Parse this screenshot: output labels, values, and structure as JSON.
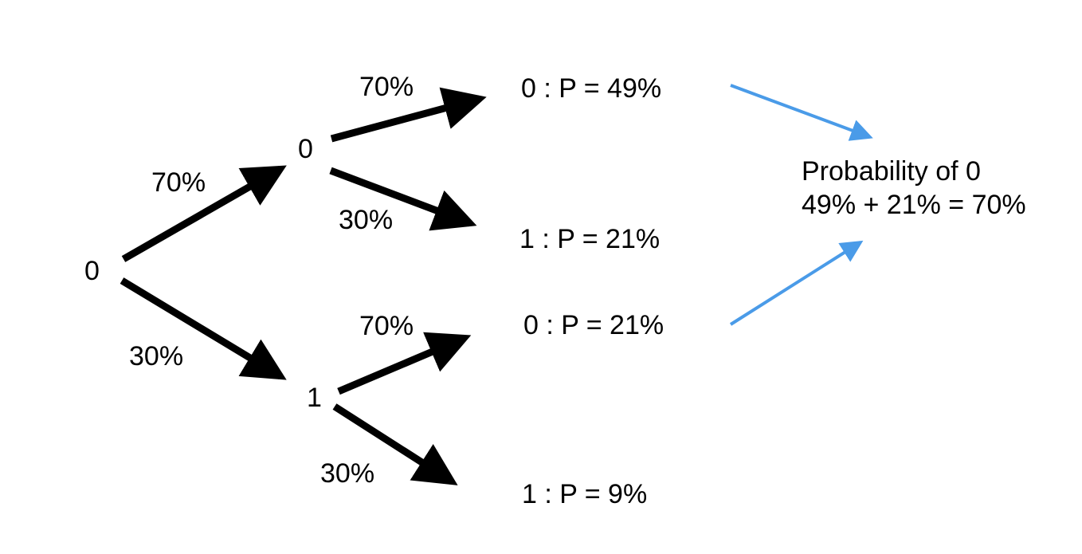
{
  "nodes": {
    "root": "0",
    "level1_top": "0",
    "level1_bottom": "1"
  },
  "edge_labels": {
    "root_to_top": "70%",
    "root_to_bottom": "30%",
    "top_to_top": "70%",
    "top_to_bottom": "30%",
    "bottom_to_top": "70%",
    "bottom_to_bottom": "30%"
  },
  "outcomes": {
    "o00": "0 : P = 49%",
    "o01": "1 : P = 21%",
    "o10": "0 : P = 21%",
    "o11": "1 : P = 9%"
  },
  "summary": {
    "line1": "Probability of 0",
    "line2": "49% + 21% = 70%"
  },
  "colors": {
    "tree_arrow": "#000000",
    "summary_arrow": "#4a9be8",
    "text": "#000000",
    "background": "#ffffff"
  }
}
